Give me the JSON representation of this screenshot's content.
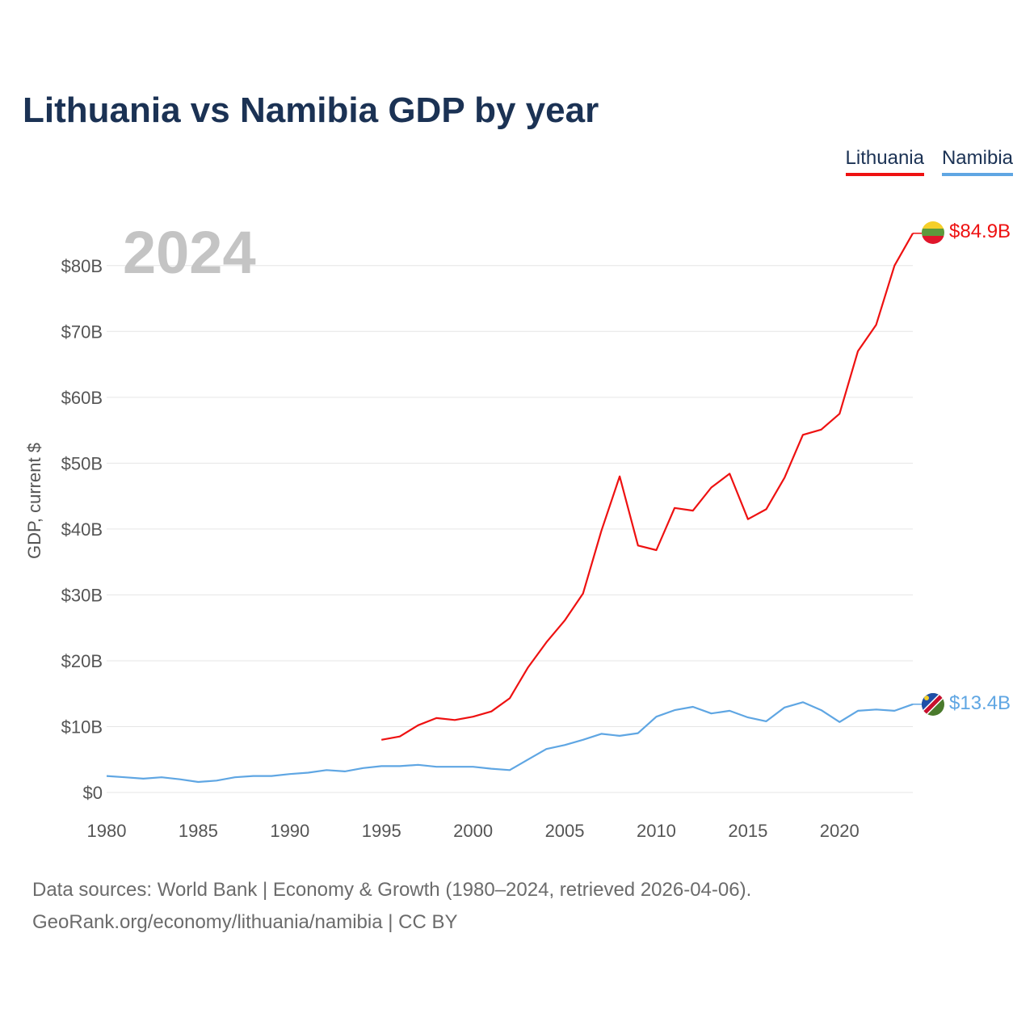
{
  "chart_data": {
    "type": "line",
    "title": "Lithuania vs Namibia GDP by year",
    "ylabel": "GDP, current $",
    "xlabel": "",
    "year_watermark": "2024",
    "xlim": [
      1980,
      2024
    ],
    "ylim": [
      0,
      85
    ],
    "x_ticks": [
      1980,
      1985,
      1990,
      1995,
      2000,
      2005,
      2010,
      2015,
      2020
    ],
    "y_ticks": [
      {
        "value": 0,
        "label": "$0"
      },
      {
        "value": 10,
        "label": "$10B"
      },
      {
        "value": 20,
        "label": "$20B"
      },
      {
        "value": 30,
        "label": "$30B"
      },
      {
        "value": 40,
        "label": "$40B"
      },
      {
        "value": 50,
        "label": "$50B"
      },
      {
        "value": 60,
        "label": "$60B"
      },
      {
        "value": 70,
        "label": "$70B"
      },
      {
        "value": 80,
        "label": "$80B"
      }
    ],
    "grid": true,
    "legend_position": "top-right",
    "series": [
      {
        "name": "Lithuania",
        "color": "#ee1111",
        "end_label": "$84.9B",
        "x": [
          1995,
          1996,
          1997,
          1998,
          1999,
          2000,
          2001,
          2002,
          2003,
          2004,
          2005,
          2006,
          2007,
          2008,
          2009,
          2010,
          2011,
          2012,
          2013,
          2014,
          2015,
          2016,
          2017,
          2018,
          2019,
          2020,
          2021,
          2022,
          2023,
          2024
        ],
        "values": [
          8.0,
          8.5,
          10.2,
          11.3,
          11.0,
          11.5,
          12.3,
          14.3,
          19.0,
          22.8,
          26.1,
          30.2,
          39.7,
          48.0,
          37.5,
          36.8,
          43.2,
          42.8,
          46.3,
          48.4,
          41.5,
          43.0,
          47.8,
          54.3,
          55.1,
          57.5,
          67.0,
          71.0,
          80.0,
          84.9
        ]
      },
      {
        "name": "Namibia",
        "color": "#5fa6e3",
        "end_label": "$13.4B",
        "x": [
          1980,
          1981,
          1982,
          1983,
          1984,
          1985,
          1986,
          1987,
          1988,
          1989,
          1990,
          1991,
          1992,
          1993,
          1994,
          1995,
          1996,
          1997,
          1998,
          1999,
          2000,
          2001,
          2002,
          2003,
          2004,
          2005,
          2006,
          2007,
          2008,
          2009,
          2010,
          2011,
          2012,
          2013,
          2014,
          2015,
          2016,
          2017,
          2018,
          2019,
          2020,
          2021,
          2022,
          2023,
          2024
        ],
        "values": [
          2.5,
          2.3,
          2.1,
          2.3,
          2.0,
          1.6,
          1.8,
          2.3,
          2.5,
          2.5,
          2.8,
          3.0,
          3.4,
          3.2,
          3.7,
          4.0,
          4.0,
          4.2,
          3.9,
          3.9,
          3.9,
          3.6,
          3.4,
          5.0,
          6.6,
          7.2,
          8.0,
          8.9,
          8.6,
          9.0,
          11.5,
          12.5,
          13.0,
          12.0,
          12.4,
          11.4,
          10.8,
          12.9,
          13.7,
          12.5,
          10.7,
          12.4,
          12.6,
          12.4,
          13.4
        ]
      }
    ]
  },
  "footer": {
    "line1": "Data sources: World Bank | Economy & Growth (1980–2024, retrieved 2026-04-06).",
    "line2": "GeoRank.org/economy/lithuania/namibia | CC BY"
  }
}
